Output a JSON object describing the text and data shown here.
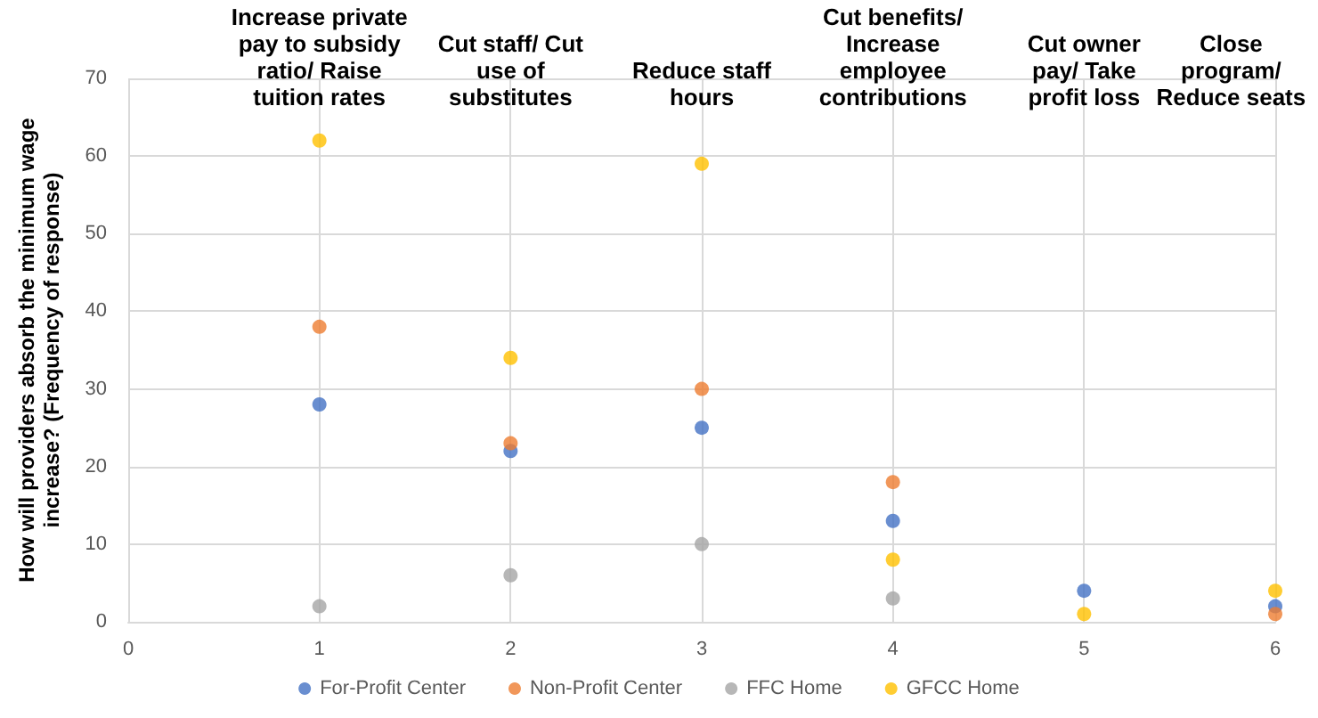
{
  "chart_data": {
    "type": "scatter",
    "ylabel": "How will providers absorb the minimum wage\nincrease? (Frequency of response)",
    "x": [
      1,
      2,
      3,
      4,
      5,
      6
    ],
    "series": [
      {
        "name": "For-Profit Center",
        "color": "#4472c4",
        "values": [
          28,
          22,
          25,
          13,
          4,
          2
        ]
      },
      {
        "name": "Non-Profit Center",
        "color": "#ed7d31",
        "values": [
          38,
          23,
          30,
          18,
          null,
          1
        ]
      },
      {
        "name": "FFC Home",
        "color": "#a5a5a5",
        "values": [
          2,
          6,
          10,
          3,
          null,
          null
        ]
      },
      {
        "name": "GFCC Home",
        "color": "#ffc000",
        "values": [
          62,
          34,
          59,
          8,
          1,
          4
        ]
      }
    ],
    "annotations": [
      "Increase private\npay to subsidy\nratio/ Raise\ntuition rates",
      "Cut staff/ Cut\nuse of\nsubstitutes",
      "Reduce staff\nhours",
      "Cut benefits/\nIncrease\nemployee\ncontributions",
      "Cut owner\npay/ Take\nprofit loss",
      "Close\nprogram/\nReduce seats"
    ],
    "xlim": [
      0,
      6
    ],
    "xticks": [
      0,
      1,
      2,
      3,
      4,
      5,
      6
    ],
    "ylim": [
      0,
      70
    ],
    "yticks": [
      0,
      10,
      20,
      30,
      40,
      50,
      60,
      70
    ],
    "grid": true,
    "legend": "bottom",
    "marker": "circle"
  }
}
